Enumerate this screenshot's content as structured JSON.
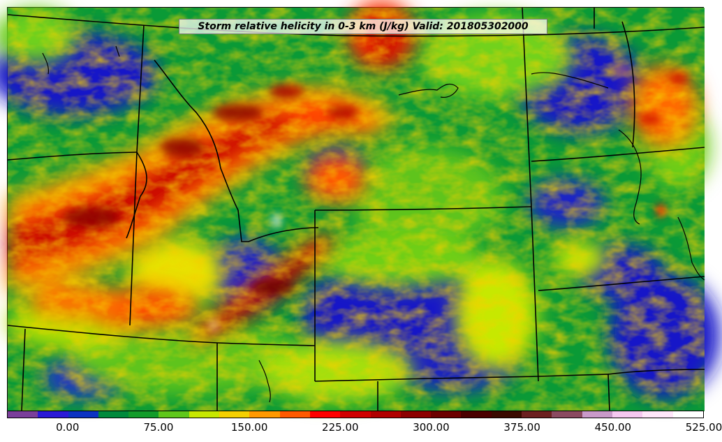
{
  "title": "Storm relative helicity in 0-3 km (J/kg) Valid: 201805302000",
  "field": {
    "variable": "Storm relative helicity in 0-3 km",
    "units": "J/kg",
    "valid_time": "201805302000"
  },
  "colorbar": {
    "colors": [
      "#7a3f9a",
      "#2b1ad6",
      "#0c33c2",
      "#008a3c",
      "#129c2a",
      "#5fc71b",
      "#c7e800",
      "#f5d000",
      "#ff9900",
      "#ff5a00",
      "#ff0000",
      "#d00000",
      "#b00000",
      "#8c0000",
      "#6c0000",
      "#4a0000",
      "#3a0a00",
      "#6b2020",
      "#8a4a60",
      "#c99ac9",
      "#f5c8f0",
      "#ffe6fa",
      "#ffffff"
    ],
    "ticks": [
      "0.00",
      "75.00",
      "150.00",
      "225.00",
      "300.00",
      "375.00",
      "450.00",
      "525.00"
    ]
  },
  "colors": {
    "background": "#009933",
    "boundary": "#000000"
  }
}
